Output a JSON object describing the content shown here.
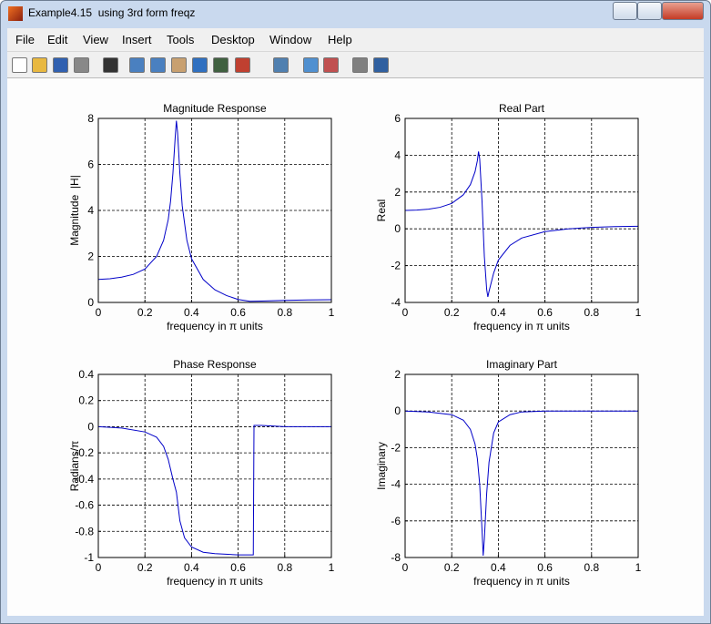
{
  "window": {
    "title": "Example4.15  using 3rd form freqz",
    "menu": [
      "File",
      "Edit",
      "View",
      "Insert",
      "Tools",
      "Desktop",
      "Window",
      "Help"
    ]
  },
  "chart_data": [
    {
      "type": "line",
      "title": "Magnitude Response",
      "xlabel": "frequency in π units",
      "ylabel": "Magnitude  |H|",
      "x": [
        0,
        0.05,
        0.1,
        0.15,
        0.2,
        0.25,
        0.28,
        0.3,
        0.31,
        0.32,
        0.33,
        0.335,
        0.34,
        0.35,
        0.36,
        0.38,
        0.4,
        0.45,
        0.5,
        0.55,
        0.6,
        0.65,
        0.7,
        0.8,
        0.9,
        1
      ],
      "series": [
        {
          "color": "#0000c8",
          "values": [
            1.0,
            1.03,
            1.1,
            1.22,
            1.45,
            2.0,
            2.7,
            3.6,
            4.4,
            5.6,
            7.2,
            7.9,
            7.4,
            5.6,
            4.2,
            2.7,
            1.9,
            1.0,
            0.55,
            0.3,
            0.13,
            0.05,
            0.06,
            0.09,
            0.11,
            0.12
          ]
        }
      ],
      "xlim": [
        0,
        1
      ],
      "ylim": [
        0,
        8
      ],
      "xticks": [
        0,
        0.2,
        0.4,
        0.6,
        0.8,
        1
      ],
      "yticks": [
        0,
        2,
        4,
        6,
        8
      ],
      "grid": true
    },
    {
      "type": "line",
      "title": "Real Part",
      "xlabel": "frequency in π units",
      "ylabel": "Real",
      "x": [
        0,
        0.05,
        0.1,
        0.15,
        0.2,
        0.25,
        0.28,
        0.3,
        0.31,
        0.315,
        0.32,
        0.33,
        0.34,
        0.35,
        0.355,
        0.36,
        0.38,
        0.4,
        0.45,
        0.5,
        0.6,
        0.7,
        0.8,
        0.9,
        1
      ],
      "series": [
        {
          "color": "#0000c8",
          "values": [
            1.0,
            1.02,
            1.07,
            1.17,
            1.38,
            1.85,
            2.4,
            3.1,
            3.7,
            4.2,
            3.8,
            1.5,
            -1.5,
            -3.3,
            -3.7,
            -3.4,
            -2.4,
            -1.7,
            -0.9,
            -0.5,
            -0.15,
            0.0,
            0.08,
            0.12,
            0.14
          ]
        }
      ],
      "xlim": [
        0,
        1
      ],
      "ylim": [
        -4,
        6
      ],
      "xticks": [
        0,
        0.2,
        0.4,
        0.6,
        0.8,
        1
      ],
      "yticks": [
        -4,
        -2,
        0,
        2,
        4,
        6
      ],
      "grid": true
    },
    {
      "type": "line",
      "title": "Phase Response",
      "xlabel": "frequency in π units",
      "ylabel": "Radians/π",
      "x": [
        0,
        0.1,
        0.2,
        0.25,
        0.28,
        0.3,
        0.32,
        0.335,
        0.35,
        0.37,
        0.4,
        0.45,
        0.5,
        0.6,
        0.665,
        0.668,
        0.7,
        0.8,
        1
      ],
      "series": [
        {
          "color": "#0000c8",
          "values": [
            0,
            -0.01,
            -0.04,
            -0.08,
            -0.15,
            -0.25,
            -0.4,
            -0.5,
            -0.72,
            -0.85,
            -0.92,
            -0.96,
            -0.97,
            -0.98,
            -0.98,
            0.01,
            0.01,
            0.0,
            0
          ]
        }
      ],
      "xlim": [
        0,
        1
      ],
      "ylim": [
        -1,
        0.4
      ],
      "xticks": [
        0,
        0.2,
        0.4,
        0.6,
        0.8,
        1
      ],
      "yticks": [
        -1,
        -0.8,
        -0.6,
        -0.4,
        -0.2,
        0,
        0.2,
        0.4
      ],
      "grid": true
    },
    {
      "type": "line",
      "title": "Imaginary Part",
      "xlabel": "frequency in π units",
      "ylabel": "Imaginary",
      "x": [
        0,
        0.1,
        0.2,
        0.25,
        0.28,
        0.3,
        0.31,
        0.32,
        0.33,
        0.335,
        0.34,
        0.35,
        0.36,
        0.38,
        0.4,
        0.45,
        0.5,
        0.6,
        0.8,
        1
      ],
      "series": [
        {
          "color": "#0000c8",
          "values": [
            0,
            -0.05,
            -0.2,
            -0.5,
            -1.0,
            -1.8,
            -2.6,
            -4.0,
            -6.5,
            -7.9,
            -7.0,
            -4.5,
            -2.8,
            -1.2,
            -0.6,
            -0.2,
            -0.05,
            0,
            0,
            0
          ]
        }
      ],
      "xlim": [
        0,
        1
      ],
      "ylim": [
        -8,
        2
      ],
      "xticks": [
        0,
        0.2,
        0.4,
        0.6,
        0.8,
        1
      ],
      "yticks": [
        -8,
        -6,
        -4,
        -2,
        0,
        2
      ],
      "grid": true
    }
  ]
}
